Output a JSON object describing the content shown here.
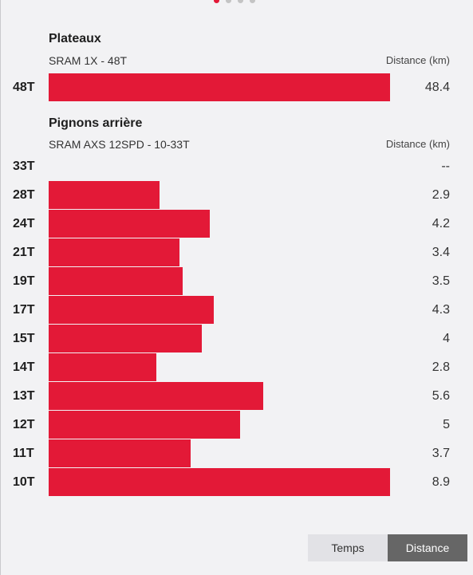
{
  "pager": {
    "count": 4,
    "active": 0
  },
  "colors": {
    "bar": "#e31937",
    "toggle_active": "#666666",
    "toggle_inactive": "#e2e2e6"
  },
  "plateaux": {
    "title": "Plateaux",
    "subtitle": "SRAM 1X - 48T",
    "metric_label": "Distance (km)",
    "max": 48.4,
    "rows": [
      {
        "label": "48T",
        "value": 48.4,
        "display": "48.4"
      }
    ]
  },
  "pignons": {
    "title": "Pignons arrière",
    "subtitle": "SRAM AXS 12SPD - 10-33T",
    "metric_label": "Distance (km)",
    "max": 8.9,
    "rows": [
      {
        "label": "33T",
        "value": 0,
        "display": "--"
      },
      {
        "label": "28T",
        "value": 2.9,
        "display": "2.9"
      },
      {
        "label": "24T",
        "value": 4.2,
        "display": "4.2"
      },
      {
        "label": "21T",
        "value": 3.4,
        "display": "3.4"
      },
      {
        "label": "19T",
        "value": 3.5,
        "display": "3.5"
      },
      {
        "label": "17T",
        "value": 4.3,
        "display": "4.3"
      },
      {
        "label": "15T",
        "value": 4,
        "display": "4"
      },
      {
        "label": "14T",
        "value": 2.8,
        "display": "2.8"
      },
      {
        "label": "13T",
        "value": 5.6,
        "display": "5.6"
      },
      {
        "label": "12T",
        "value": 5,
        "display": "5"
      },
      {
        "label": "11T",
        "value": 3.7,
        "display": "3.7"
      },
      {
        "label": "10T",
        "value": 8.9,
        "display": "8.9"
      }
    ]
  },
  "toggle": {
    "temps_label": "Temps",
    "distance_label": "Distance",
    "selected": "distance"
  }
}
